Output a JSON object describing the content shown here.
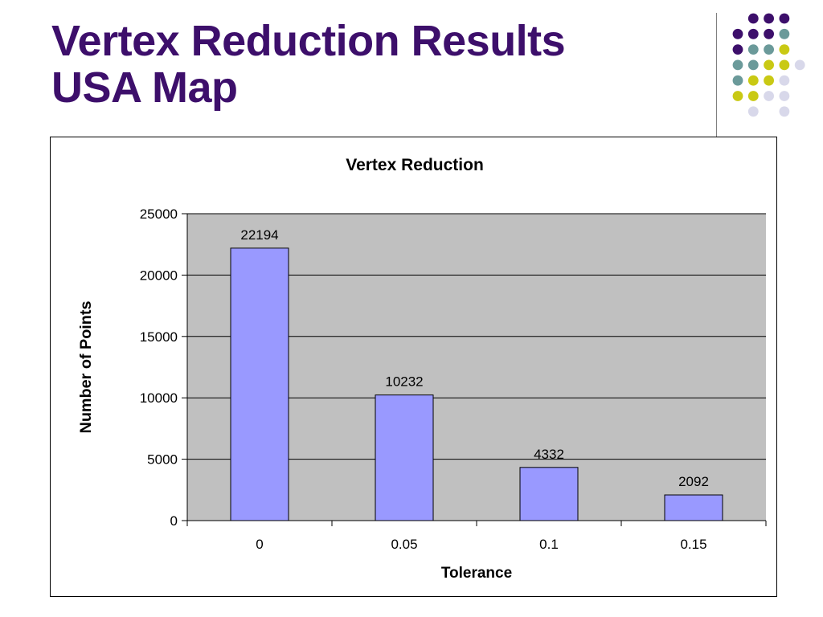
{
  "slide": {
    "title_line1": "Vertex Reduction Results",
    "title_line2": "USA Map",
    "title_color": "#3d0f6b"
  },
  "decoration": {
    "dot_colors": {
      "purple": "#3d0f6b",
      "teal": "#6b9a9a",
      "yellow": "#c9c914",
      "lavender": "#d8d8ea"
    }
  },
  "chart_data": {
    "type": "bar",
    "title": "Vertex Reduction",
    "xlabel": "Tolerance",
    "ylabel": "Number of Points",
    "categories": [
      "0",
      "0.05",
      "0.1",
      "0.15"
    ],
    "values": [
      22194,
      10232,
      4332,
      2092
    ],
    "data_labels": [
      "22194",
      "10232",
      "4332",
      "2092"
    ],
    "ylim": [
      0,
      25000
    ],
    "yticks": [
      "0",
      "5000",
      "10000",
      "15000",
      "20000",
      "25000"
    ],
    "ytick_values": [
      0,
      5000,
      10000,
      15000,
      20000,
      25000
    ],
    "grid": true,
    "legend": "none",
    "bar_color": "#9999ff",
    "plot_background": "#c0c0c0"
  }
}
